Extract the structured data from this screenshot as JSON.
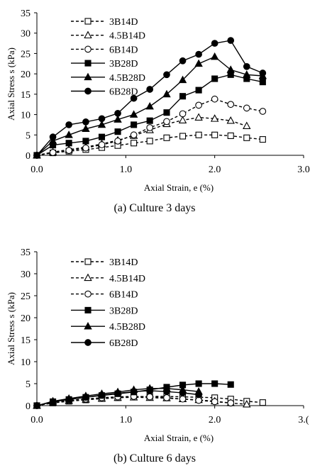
{
  "chart_data": [
    {
      "type": "line",
      "caption": "(a) Culture 3 days",
      "xlabel": "Axial Strain, e (%)",
      "ylabel": "Axial Stress s (kPa)",
      "xlim": [
        0,
        3
      ],
      "ylim": [
        0,
        35
      ],
      "xticks": [
        "0.0",
        "1.0",
        "2.0",
        "3.0"
      ],
      "yticks": [
        "0",
        "5",
        "10",
        "15",
        "20",
        "25",
        "30",
        "35"
      ],
      "legend_position": "top-left",
      "series": [
        {
          "name": "3B14D",
          "marker": "square",
          "filled": false,
          "dashed": true,
          "x": [
            0.0,
            0.18,
            0.36,
            0.55,
            0.73,
            0.91,
            1.09,
            1.27,
            1.46,
            1.64,
            1.82,
            2.0,
            2.18,
            2.36,
            2.54
          ],
          "y": [
            0.0,
            0.6,
            1.0,
            1.4,
            1.9,
            2.4,
            3.0,
            3.5,
            4.3,
            4.7,
            5.0,
            5.0,
            4.8,
            4.3,
            3.9
          ]
        },
        {
          "name": "4.5B14D",
          "marker": "triangle",
          "filled": false,
          "dashed": true,
          "x": [
            0.0,
            0.18,
            0.36,
            0.55,
            0.73,
            0.91,
            1.09,
            1.27,
            1.46,
            1.64,
            1.82,
            2.0,
            2.18,
            2.36
          ],
          "y": [
            0.0,
            0.8,
            1.4,
            2.0,
            2.8,
            3.7,
            4.8,
            6.2,
            7.7,
            8.6,
            9.3,
            9.0,
            8.5,
            7.2
          ]
        },
        {
          "name": "6B14D",
          "marker": "circle",
          "filled": false,
          "dashed": true,
          "x": [
            0.0,
            0.18,
            0.36,
            0.55,
            0.73,
            0.91,
            1.09,
            1.27,
            1.46,
            1.64,
            1.82,
            2.0,
            2.18,
            2.36,
            2.54
          ],
          "y": [
            0.0,
            0.7,
            1.2,
            1.8,
            2.6,
            3.5,
            5.0,
            6.8,
            8.3,
            10.2,
            12.3,
            13.8,
            12.5,
            11.6,
            10.8
          ]
        },
        {
          "name": "3B28D",
          "marker": "square",
          "filled": true,
          "dashed": false,
          "x": [
            0.0,
            0.18,
            0.36,
            0.55,
            0.73,
            0.91,
            1.09,
            1.27,
            1.46,
            1.64,
            1.82,
            2.0,
            2.18,
            2.36,
            2.54
          ],
          "y": [
            0.0,
            2.5,
            3.0,
            3.5,
            4.5,
            5.8,
            7.5,
            8.5,
            10.5,
            14.5,
            16.0,
            18.8,
            19.8,
            18.8,
            18.0
          ]
        },
        {
          "name": "4.5B28D",
          "marker": "triangle",
          "filled": true,
          "dashed": false,
          "x": [
            0.0,
            0.18,
            0.36,
            0.55,
            0.73,
            0.91,
            1.09,
            1.27,
            1.46,
            1.64,
            1.82,
            2.0,
            2.18,
            2.36,
            2.54
          ],
          "y": [
            0.0,
            3.5,
            5.0,
            6.5,
            7.5,
            8.8,
            10.0,
            12.0,
            15.0,
            18.5,
            22.5,
            24.2,
            21.0,
            19.8,
            19.5
          ]
        },
        {
          "name": "6B28D",
          "marker": "circle",
          "filled": true,
          "dashed": false,
          "x": [
            0.0,
            0.18,
            0.36,
            0.55,
            0.73,
            0.91,
            1.09,
            1.27,
            1.46,
            1.64,
            1.82,
            2.0,
            2.18,
            2.36,
            2.54
          ],
          "y": [
            0.0,
            4.5,
            7.5,
            8.2,
            9.0,
            10.3,
            14.0,
            16.2,
            19.8,
            23.2,
            24.8,
            27.5,
            28.2,
            21.8,
            20.2
          ]
        }
      ]
    },
    {
      "type": "line",
      "caption": "(b) Culture 6 days",
      "xlabel": "Axial Strain, e (%)",
      "ylabel": "Axial Stress s (kPa)",
      "xlim": [
        0,
        3
      ],
      "ylim": [
        0,
        35
      ],
      "xticks": [
        "0.0",
        "1.0",
        "2.0",
        "3.("
      ],
      "yticks": [
        "0",
        "5",
        "10",
        "15",
        "20",
        "25",
        "30",
        "35"
      ],
      "legend_position": "top-left",
      "series": [
        {
          "name": "3B14D",
          "marker": "square",
          "filled": false,
          "dashed": true,
          "x": [
            0.0,
            0.18,
            0.36,
            0.55,
            0.73,
            0.91,
            1.09,
            1.27,
            1.46,
            1.64,
            1.82,
            2.0,
            2.18,
            2.36,
            2.54
          ],
          "y": [
            0.0,
            0.6,
            1.0,
            1.3,
            1.6,
            1.8,
            2.0,
            2.1,
            2.1,
            2.0,
            1.9,
            1.8,
            1.5,
            1.0,
            0.7
          ]
        },
        {
          "name": "4.5B14D",
          "marker": "triangle",
          "filled": false,
          "dashed": true,
          "x": [
            0.0,
            0.18,
            0.36,
            0.55,
            0.73,
            0.91,
            1.09,
            1.27,
            1.46,
            1.64,
            1.82,
            2.0,
            2.18,
            2.36
          ],
          "y": [
            0.0,
            0.7,
            1.1,
            1.4,
            1.6,
            1.8,
            1.9,
            1.8,
            1.7,
            1.5,
            1.3,
            1.0,
            0.6,
            0.3
          ]
        },
        {
          "name": "6B14D",
          "marker": "circle",
          "filled": false,
          "dashed": true,
          "x": [
            0.0,
            0.18,
            0.36,
            0.55,
            0.73,
            0.91,
            1.09,
            1.27,
            1.46,
            1.64,
            1.82,
            2.0,
            2.18
          ],
          "y": [
            0.0,
            0.8,
            1.2,
            1.5,
            1.8,
            2.0,
            2.1,
            2.0,
            1.8,
            1.5,
            1.2,
            0.9,
            0.6
          ]
        },
        {
          "name": "3B28D",
          "marker": "square",
          "filled": true,
          "dashed": false,
          "x": [
            0.0,
            0.18,
            0.36,
            0.55,
            0.73,
            0.91,
            1.09,
            1.27,
            1.46,
            1.64,
            1.82,
            2.0,
            2.18
          ],
          "y": [
            0.0,
            0.9,
            1.4,
            1.9,
            2.3,
            2.7,
            3.1,
            3.6,
            4.2,
            4.7,
            5.0,
            5.0,
            4.8
          ]
        },
        {
          "name": "4.5B28D",
          "marker": "triangle",
          "filled": true,
          "dashed": false,
          "x": [
            0.0,
            0.18,
            0.36,
            0.55,
            0.73,
            0.91,
            1.09,
            1.27,
            1.46,
            1.64,
            1.82
          ],
          "y": [
            0.0,
            1.0,
            1.6,
            2.2,
            2.7,
            3.1,
            3.6,
            3.9,
            3.9,
            3.6,
            3.2
          ]
        },
        {
          "name": "6B28D",
          "marker": "circle",
          "filled": true,
          "dashed": false,
          "x": [
            0.0,
            0.18,
            0.36,
            0.55,
            0.73,
            0.91,
            1.09,
            1.27,
            1.46,
            1.64,
            1.82
          ],
          "y": [
            0.0,
            0.9,
            1.4,
            1.9,
            2.4,
            2.8,
            3.2,
            3.4,
            3.2,
            2.9,
            2.5
          ]
        }
      ]
    }
  ]
}
